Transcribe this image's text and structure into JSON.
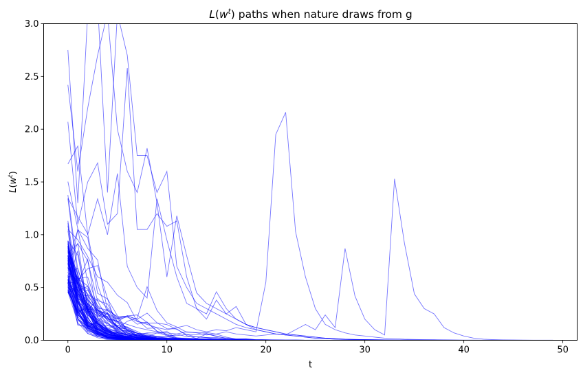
{
  "chart_data": {
    "type": "line",
    "title_parts": {
      "l": "L",
      "open": "(",
      "w": "w",
      "sup": "t",
      "close": ")",
      "rest": " paths when nature draws from g"
    },
    "xlabel": "t",
    "ylabel_parts": {
      "l": "L",
      "open": "(",
      "w": "w",
      "sup": "t",
      "close": ")"
    },
    "xlim": [
      -2.45,
      51.45
    ],
    "ylim": [
      0,
      3.0
    ],
    "xticks": [
      0,
      10,
      20,
      30,
      40,
      50
    ],
    "yticks": [
      0.0,
      0.5,
      1.0,
      1.5,
      2.0,
      2.5,
      3.0
    ],
    "line_color": "#0000ff",
    "line_alpha": 0.55,
    "grid": false,
    "legend": "none",
    "n_paths": 100,
    "x": [
      0,
      1,
      2,
      3,
      4,
      5,
      6,
      7,
      8,
      9,
      10,
      11,
      12,
      13,
      14,
      15,
      16,
      17,
      18,
      19,
      20,
      21,
      22,
      23,
      24,
      25,
      26,
      27,
      28,
      29,
      30,
      31,
      32,
      33,
      34,
      35,
      36,
      37,
      38,
      39,
      40,
      41,
      42,
      43,
      44,
      45,
      46,
      47,
      48,
      49
    ],
    "highlighted_series": [
      {
        "values": [
          0.55,
          0.42,
          0.34,
          0.28,
          0.24,
          0.2,
          0.22,
          0.18,
          0.15,
          0.12,
          0.1,
          0.12,
          0.14,
          0.1,
          0.08,
          0.1,
          0.09,
          0.12,
          0.1,
          0.08,
          0.55,
          1.95,
          2.16,
          1.03,
          0.6,
          0.3,
          0.15,
          0.1,
          0.07,
          0.05,
          0.04,
          0.03,
          0.02,
          0.015,
          0.01,
          0.008,
          0.006,
          0.005,
          0.004,
          0.003,
          0.002,
          0.002,
          0.001,
          0.001,
          0.001,
          0.001,
          0.0005,
          0.0005,
          0.0005,
          0.0005
        ]
      },
      {
        "values": [
          0.5,
          0.4,
          0.32,
          0.25,
          0.2,
          0.18,
          0.15,
          0.12,
          0.1,
          0.08,
          0.07,
          0.06,
          0.08,
          0.07,
          0.05,
          0.06,
          0.08,
          0.06,
          0.05,
          0.04,
          0.05,
          0.06,
          0.05,
          0.1,
          0.15,
          0.1,
          0.24,
          0.12,
          0.87,
          0.42,
          0.2,
          0.1,
          0.05,
          1.53,
          0.92,
          0.44,
          0.3,
          0.25,
          0.12,
          0.07,
          0.04,
          0.02,
          0.01,
          0.006,
          0.004,
          0.003,
          0.002,
          0.001,
          0.001,
          0.001
        ]
      },
      {
        "values": [
          2.75,
          1.3,
          3.1,
          3.2,
          1.4,
          3.1,
          2.7,
          1.75,
          1.75,
          1.4,
          1.6,
          0.7,
          0.5,
          0.35,
          0.3,
          0.25,
          0.2,
          0.15,
          0.12,
          0.1,
          0.08,
          0.06,
          0.05,
          0.04,
          0.03,
          0.02,
          0.015,
          0.01,
          0.008,
          0.006,
          0.005,
          0.004,
          0.003,
          0.002,
          0.002,
          0.001,
          0.001,
          0.001,
          0.001,
          0.0005,
          0.0005,
          0.0005,
          0.0005,
          0.0005,
          0.0005,
          0.0005,
          0.0005,
          0.0005,
          0.0005,
          0.0005
        ]
      },
      {
        "values": [
          2.42,
          1.6,
          2.2,
          2.7,
          3.1,
          2.0,
          1.6,
          1.4,
          1.82,
          1.3,
          0.6,
          1.18,
          0.8,
          0.45,
          0.35,
          0.3,
          0.25,
          0.2,
          0.15,
          0.12,
          0.1,
          0.08,
          0.06,
          0.05,
          0.04,
          0.03,
          0.02,
          0.015,
          0.01,
          0.008,
          0.006,
          0.005,
          0.004,
          0.003,
          0.002,
          0.002,
          0.001,
          0.001,
          0.001,
          0.001,
          0.0005,
          0.0005,
          0.0005,
          0.0005,
          0.0005,
          0.0005,
          0.0005,
          0.0005,
          0.0005,
          0.0005
        ]
      },
      {
        "values": [
          2.07,
          1.1,
          1.5,
          1.68,
          1.1,
          1.2,
          2.58,
          1.05,
          1.05,
          1.2,
          1.08,
          1.13,
          0.6,
          0.3,
          0.25,
          0.46,
          0.3,
          0.2,
          0.15,
          0.1,
          0.08,
          0.06,
          0.05,
          0.04,
          0.03,
          0.02,
          0.015,
          0.01,
          0.008,
          0.006,
          0.005,
          0.004,
          0.003,
          0.002,
          0.002,
          0.001,
          0.001,
          0.001,
          0.001,
          0.0005,
          0.0005,
          0.0005,
          0.0005,
          0.0005,
          0.0005,
          0.0005,
          0.0005,
          0.0005,
          0.0005,
          0.0005
        ]
      },
      {
        "values": [
          1.67,
          1.84,
          1.0,
          1.34,
          1.0,
          1.58,
          0.7,
          0.5,
          0.4,
          1.34,
          0.95,
          0.6,
          0.35,
          0.3,
          0.2,
          0.38,
          0.25,
          0.32,
          0.15,
          0.12,
          0.1,
          0.08,
          0.06,
          0.05,
          0.04,
          0.03,
          0.02,
          0.015,
          0.01,
          0.008,
          0.006,
          0.005,
          0.004,
          0.003,
          0.002,
          0.002,
          0.001,
          0.001,
          0.001,
          0.001,
          0.0005,
          0.0005,
          0.0005,
          0.0005,
          0.0005,
          0.0005,
          0.0005,
          0.0005,
          0.0005,
          0.0005
        ]
      }
    ]
  }
}
